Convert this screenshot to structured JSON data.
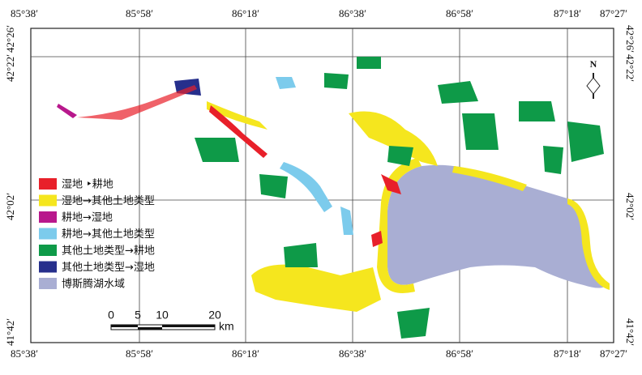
{
  "map": {
    "top_labels": [
      "85°38′",
      "85°58′",
      "86°18′",
      "86°38′",
      "86°58′",
      "87°18′",
      "87°27′"
    ],
    "bottom_labels": [
      "85°38′",
      "85°58′",
      "86°18′",
      "86°38′",
      "86°58′",
      "87°18′",
      "87°27′"
    ],
    "left_labels": [
      "42°26′",
      "42°22′",
      "42°02′",
      "41°42′"
    ],
    "right_labels": [
      "42°26′",
      "42°22′",
      "42°02′",
      "41°42′"
    ],
    "north": "N",
    "legend": [
      {
        "label": "湿地 ‣耕地",
        "color": "#e8202a"
      },
      {
        "label": "湿地→其他土地类型",
        "color": "#f5e61e"
      },
      {
        "label": "耕地→湿地",
        "color": "#b8188c"
      },
      {
        "label": "耕地→其他土地类型",
        "color": "#7ccbec"
      },
      {
        "label": "其他土地类型→耕地",
        "color": "#0e9a48"
      },
      {
        "label": "其他土地类型→湿地",
        "color": "#262f8c"
      },
      {
        "label": "博斯腾湖水域",
        "color": "#a9aed3"
      }
    ],
    "scale": {
      "ticks": [
        0,
        5,
        10,
        20
      ],
      "unit": "km"
    }
  }
}
